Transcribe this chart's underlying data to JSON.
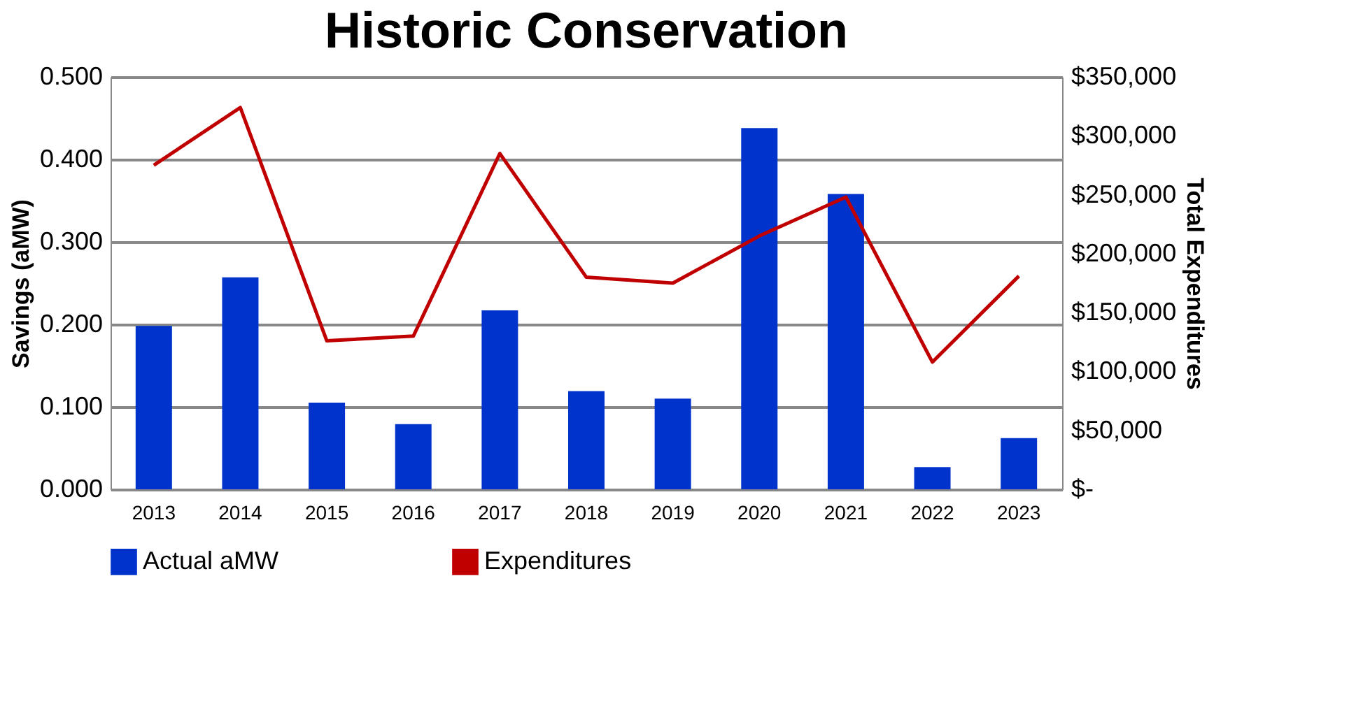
{
  "chart_data": {
    "type": "bar",
    "title": "Historic Conservation",
    "ylabel": "Savings (aMW)",
    "y2label": "Total Expenditures",
    "categories": [
      "2013",
      "2014",
      "2015",
      "2016",
      "2017",
      "2018",
      "2019",
      "2020",
      "2021",
      "2022",
      "2023"
    ],
    "series": [
      {
        "name": "Actual aMW",
        "color": "#0033cc",
        "values": [
          0.198,
          0.257,
          0.105,
          0.079,
          0.217,
          0.119,
          0.11,
          0.438,
          0.358,
          0.027,
          0.062
        ]
      },
      {
        "name": "Expenditures",
        "type": "line",
        "axis": "y2",
        "color": "#c00000",
        "values": [
          275000,
          324000,
          126000,
          130000,
          285000,
          180000,
          175000,
          215000,
          248000,
          108000,
          181000
        ]
      }
    ],
    "ylim": [
      0,
      0.5
    ],
    "yticks": [
      {
        "value": 0,
        "label": "0.000"
      },
      {
        "value": 0.1,
        "label": "0.100"
      },
      {
        "value": 0.2,
        "label": "0.200"
      },
      {
        "value": 0.3,
        "label": "0.300"
      },
      {
        "value": 0.4,
        "label": "0.400"
      },
      {
        "value": 0.5,
        "label": "0.500"
      }
    ],
    "y2lim": [
      0,
      350000
    ],
    "y2ticks": [
      {
        "value": 0,
        "label": "$-"
      },
      {
        "value": 50000,
        "label": "$50,000"
      },
      {
        "value": 100000,
        "label": "$100,000"
      },
      {
        "value": 150000,
        "label": "$150,000"
      },
      {
        "value": 200000,
        "label": "$200,000"
      },
      {
        "value": 250000,
        "label": "$250,000"
      },
      {
        "value": 300000,
        "label": "$300,000"
      },
      {
        "value": 350000,
        "label": "$350,000"
      }
    ],
    "grid": "y",
    "legend": "bottom",
    "marker": "none",
    "line_style": "solid"
  }
}
